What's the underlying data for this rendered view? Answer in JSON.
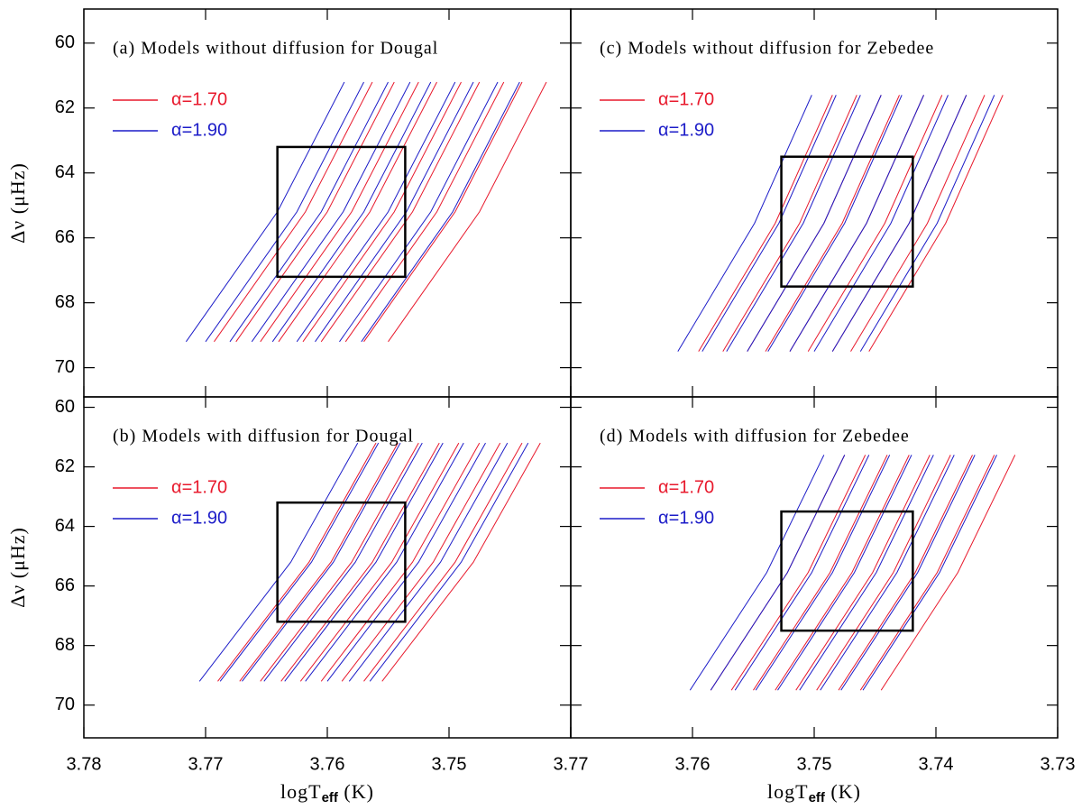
{
  "chart_data": [
    {
      "type": "line",
      "title": "(a) Models without diffusion for Dougal",
      "xlim": [
        3.78,
        3.74
      ],
      "ylim": [
        70.9,
        58.95
      ],
      "xticks": [
        3.78,
        3.77,
        3.76,
        3.75,
        3.74
      ],
      "yticks": [
        60,
        62,
        64,
        66,
        68,
        70
      ],
      "show_xticklabels": false,
      "show_yticklabels": true,
      "ylabel": "Δν (μHz)",
      "legend": "upper left",
      "box": {
        "x": [
          3.7641,
          3.7536
        ],
        "y": [
          63.2,
          67.2
        ]
      },
      "series": [
        {
          "name": "α=1.70",
          "color": "#e8192c",
          "y": [
            69.2,
            65.2,
            61.2
          ],
          "tracks": [
            [
              3.7693,
              3.7618,
              3.7563
            ],
            [
              3.7675,
              3.76,
              3.7545
            ],
            [
              3.7655,
              3.758,
              3.7525
            ],
            [
              3.764,
              3.7565,
              3.751
            ],
            [
              3.762,
              3.7545,
              3.749
            ],
            [
              3.7605,
              3.753,
              3.7475
            ],
            [
              3.7585,
              3.751,
              3.7455
            ],
            [
              3.757,
              3.7495,
              3.744
            ],
            [
              3.755,
              3.7475,
              3.742
            ]
          ]
        },
        {
          "name": "α=1.90",
          "color": "#1c1cc8",
          "y": [
            69.2,
            65.2,
            61.2
          ],
          "tracks": [
            [
              3.7716,
              3.7641,
              3.7586
            ],
            [
              3.77,
              3.7625,
              3.757
            ],
            [
              3.768,
              3.7605,
              3.755
            ],
            [
              3.7662,
              3.7587,
              3.7532
            ],
            [
              3.7645,
              3.757,
              3.7515
            ],
            [
              3.7625,
              3.755,
              3.7495
            ],
            [
              3.761,
              3.7535,
              3.748
            ],
            [
              3.759,
              3.7515,
              3.746
            ],
            [
              3.7572,
              3.7497,
              3.7442
            ]
          ]
        }
      ]
    },
    {
      "type": "line",
      "title": "(c) Models without diffusion for Zebedee",
      "xlim": [
        3.77,
        3.73
      ],
      "ylim": [
        70.9,
        58.95
      ],
      "xticks": [
        3.77,
        3.76,
        3.75,
        3.74,
        3.73
      ],
      "yticks": [
        60,
        62,
        64,
        66,
        68,
        70
      ],
      "show_xticklabels": false,
      "show_yticklabels": false,
      "legend": "upper left",
      "box": {
        "x": [
          3.7527,
          3.7419
        ],
        "y": [
          63.5,
          67.5
        ]
      },
      "series": [
        {
          "name": "α=1.70",
          "color": "#e8192c",
          "y": [
            69.5,
            65.55,
            61.6
          ],
          "tracks": [
            [
              3.7595,
              3.7532,
              3.7485
            ],
            [
              3.7575,
              3.7512,
              3.7465
            ],
            [
              3.7555,
              3.7492,
              3.7445
            ],
            [
              3.754,
              3.7477,
              3.743
            ],
            [
              3.752,
              3.7457,
              3.741
            ],
            [
              3.7505,
              3.7442,
              3.7395
            ],
            [
              3.7485,
              3.7422,
              3.7375
            ],
            [
              3.747,
              3.7407,
              3.736
            ],
            [
              3.7455,
              3.7392,
              3.7345
            ]
          ]
        },
        {
          "name": "α=1.90",
          "color": "#1c1cc8",
          "y": [
            69.5,
            65.55,
            61.6
          ],
          "tracks": [
            [
              3.7612,
              3.7549,
              3.7502
            ],
            [
              3.7592,
              3.7529,
              3.7482
            ],
            [
              3.7572,
              3.7509,
              3.7462
            ],
            [
              3.7555,
              3.7492,
              3.7445
            ],
            [
              3.7538,
              3.7475,
              3.7428
            ],
            [
              3.752,
              3.7457,
              3.741
            ],
            [
              3.75,
              3.7437,
              3.739
            ],
            [
              3.7485,
              3.7422,
              3.7375
            ],
            [
              3.7462,
              3.7399,
              3.7352
            ]
          ]
        }
      ]
    },
    {
      "type": "line",
      "title": "(b) Models with diffusion for Dougal",
      "xlim": [
        3.78,
        3.74
      ],
      "ylim": [
        71.1,
        59.65
      ],
      "xticks": [
        3.78,
        3.77,
        3.76,
        3.75,
        3.74
      ],
      "yticks": [
        60,
        62,
        64,
        66,
        68,
        70
      ],
      "show_xticklabels": true,
      "hide_last_xticklabel": true,
      "show_yticklabels": true,
      "ylabel": "Δν (μHz)",
      "xlabel": {
        "main": "logT",
        "sub": "eff",
        "unit": " (K)"
      },
      "legend": "upper left",
      "box": {
        "x": [
          3.7641,
          3.7536
        ],
        "y": [
          63.2,
          67.2
        ]
      },
      "series": [
        {
          "name": "α=1.70",
          "color": "#e8192c",
          "y": [
            69.2,
            65.2,
            61.2
          ],
          "tracks": [
            [
              3.769,
              3.7615,
              3.756
            ],
            [
              3.7672,
              3.7597,
              3.7542
            ],
            [
              3.7655,
              3.758,
              3.7525
            ],
            [
              3.7638,
              3.7563,
              3.7508
            ],
            [
              3.7622,
              3.7547,
              3.7492
            ],
            [
              3.7605,
              3.753,
              3.7475
            ],
            [
              3.7588,
              3.7513,
              3.7458
            ],
            [
              3.757,
              3.7495,
              3.744
            ],
            [
              3.7555,
              3.748,
              3.7425
            ]
          ]
        },
        {
          "name": "α=1.90",
          "color": "#1c1cc8",
          "y": [
            69.2,
            65.2,
            61.2
          ],
          "tracks": [
            [
              3.7705,
              3.763,
              3.7575
            ],
            [
              3.7688,
              3.7613,
              3.7558
            ],
            [
              3.767,
              3.7595,
              3.754
            ],
            [
              3.7652,
              3.7577,
              3.7522
            ],
            [
              3.7635,
              3.756,
              3.7505
            ],
            [
              3.7618,
              3.7543,
              3.7488
            ],
            [
              3.76,
              3.7525,
              3.747
            ],
            [
              3.7582,
              3.7507,
              3.7452
            ],
            [
              3.7565,
              3.749,
              3.7435
            ]
          ]
        }
      ]
    },
    {
      "type": "line",
      "title": "(d) Models with diffusion for Zebedee",
      "xlim": [
        3.77,
        3.73
      ],
      "ylim": [
        71.1,
        59.65
      ],
      "xticks": [
        3.77,
        3.76,
        3.75,
        3.74,
        3.73
      ],
      "yticks": [
        60,
        62,
        64,
        66,
        68,
        70
      ],
      "show_xticklabels": true,
      "show_yticklabels": false,
      "xlabel": {
        "main": "logT",
        "sub": "eff",
        "unit": " (K)"
      },
      "legend": "upper left",
      "box": {
        "x": [
          3.7527,
          3.7419
        ],
        "y": [
          63.5,
          67.5
        ]
      },
      "series": [
        {
          "name": "α=1.70",
          "color": "#e8192c",
          "y": [
            69.5,
            65.55,
            61.6
          ],
          "tracks": [
            [
              3.7585,
              3.7522,
              3.7475
            ],
            [
              3.7568,
              3.7505,
              3.7458
            ],
            [
              3.755,
              3.7487,
              3.744
            ],
            [
              3.7532,
              3.7469,
              3.7422
            ],
            [
              3.7515,
              3.7452,
              3.7405
            ],
            [
              3.7498,
              3.7435,
              3.7388
            ],
            [
              3.748,
              3.7417,
              3.737
            ],
            [
              3.7462,
              3.7399,
              3.7352
            ],
            [
              3.7445,
              3.7382,
              3.7335
            ]
          ]
        },
        {
          "name": "α=1.90",
          "color": "#1c1cc8",
          "y": [
            69.5,
            65.55,
            61.6
          ],
          "tracks": [
            [
              3.7602,
              3.7539,
              3.7492
            ],
            [
              3.7585,
              3.7522,
              3.7475
            ],
            [
              3.7565,
              3.7502,
              3.7455
            ],
            [
              3.7548,
              3.7485,
              3.7438
            ],
            [
              3.753,
              3.7467,
              3.742
            ],
            [
              3.7512,
              3.7449,
              3.7402
            ],
            [
              3.7495,
              3.7432,
              3.7385
            ],
            [
              3.7478,
              3.7415,
              3.7368
            ],
            [
              3.746,
              3.7397,
              3.735
            ]
          ]
        }
      ]
    }
  ]
}
